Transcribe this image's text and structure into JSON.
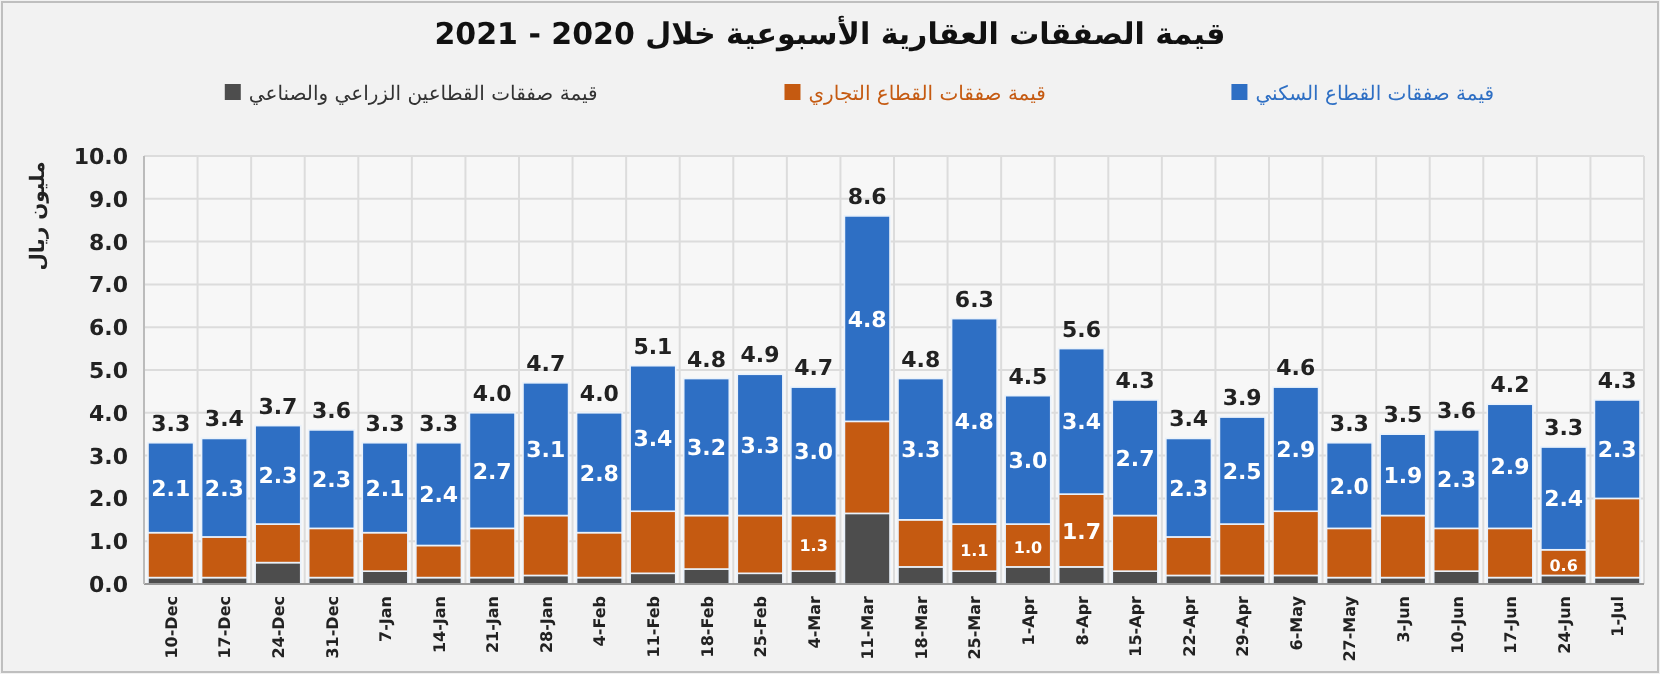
{
  "chart_data": {
    "type": "bar",
    "title": "قيمة الصفقات العقارية الأسبوعية خلال 2020 - 2021",
    "ylabel": "مليون ريال",
    "categories": [
      "10-Dec",
      "17-Dec",
      "24-Dec",
      "31-Dec",
      "7-Jan",
      "14-Jan",
      "21-Jan",
      "28-Jan",
      "4-Feb",
      "11-Feb",
      "18-Feb",
      "25-Feb",
      "4-Mar",
      "11-Mar",
      "18-Mar",
      "25-Mar",
      "1-Apr",
      "8-Apr",
      "15-Apr",
      "22-Apr",
      "29-Apr",
      "6-May",
      "27-May",
      "3-Jun",
      "10-Jun",
      "17-Jun",
      "24-Jun",
      "1-Jul"
    ],
    "stacked": true,
    "series": [
      {
        "name": "قيمة صفقات القطاعين الزراعي والصناعي",
        "color": "#4d4d4d",
        "values": [
          0.15,
          0.15,
          0.5,
          0.15,
          0.3,
          0.15,
          0.15,
          0.2,
          0.15,
          0.25,
          0.35,
          0.25,
          0.3,
          1.65,
          0.4,
          0.3,
          0.4,
          0.4,
          0.3,
          0.2,
          0.2,
          0.2,
          0.15,
          0.15,
          0.3,
          0.15,
          0.2,
          0.15
        ]
      },
      {
        "name": "قيمة صفقات القطاع التجاري",
        "color": "#c55a11",
        "values": [
          1.05,
          0.95,
          0.9,
          1.15,
          0.9,
          0.75,
          1.15,
          1.4,
          1.05,
          1.45,
          1.25,
          1.35,
          1.3,
          2.15,
          1.1,
          1.1,
          1.0,
          1.7,
          1.3,
          0.9,
          1.2,
          1.5,
          1.15,
          1.45,
          1.0,
          1.15,
          0.6,
          1.85
        ],
        "value_labels": [
          null,
          null,
          null,
          null,
          null,
          null,
          null,
          null,
          null,
          null,
          null,
          null,
          "1.3",
          null,
          null,
          "1.1",
          "1.0",
          "1.7",
          null,
          null,
          null,
          null,
          null,
          null,
          null,
          null,
          "0.6",
          null
        ]
      },
      {
        "name": "قيمة صفقات القطاع السكني",
        "color": "#2e6fc4",
        "values": [
          2.1,
          2.3,
          2.3,
          2.3,
          2.1,
          2.4,
          2.7,
          3.1,
          2.8,
          3.4,
          3.2,
          3.3,
          3.0,
          4.8,
          3.3,
          4.8,
          3.0,
          3.4,
          2.7,
          2.3,
          2.5,
          2.9,
          2.0,
          1.9,
          2.3,
          2.9,
          2.4,
          2.3
        ],
        "value_labels": [
          "2.1",
          "2.3",
          "2.3",
          "2.3",
          "2.1",
          "2.4",
          "2.7",
          "3.1",
          "2.8",
          "3.4",
          "3.2",
          "3.3",
          "3.0",
          "4.8",
          "3.3",
          "4.8",
          "3.0",
          "3.4",
          "2.7",
          "2.3",
          "2.5",
          "2.9",
          "2.0",
          "1.9",
          "2.3",
          "2.9",
          "2.4",
          "2.3"
        ]
      }
    ],
    "totals": [
      "3.3",
      "3.4",
      "3.7",
      "3.6",
      "3.3",
      "3.3",
      "4.0",
      "4.7",
      "4.0",
      "5.1",
      "4.8",
      "4.9",
      "4.7",
      "8.6",
      "4.8",
      "6.3",
      "4.5",
      "5.6",
      "4.3",
      "3.4",
      "3.9",
      "4.6",
      "3.3",
      "3.5",
      "3.6",
      "4.2",
      "3.3",
      "4.3"
    ],
    "ylim": [
      0,
      10
    ],
    "yticks": [
      {
        "value": 0,
        "label": "0.0"
      },
      {
        "value": 1,
        "label": "1.0"
      },
      {
        "value": 2,
        "label": "2.0"
      },
      {
        "value": 3,
        "label": "3.0"
      },
      {
        "value": 4,
        "label": "4.0"
      },
      {
        "value": 5,
        "label": "5.0"
      },
      {
        "value": 6,
        "label": "6.0"
      },
      {
        "value": 7,
        "label": "7.0"
      },
      {
        "value": 8,
        "label": "8.0"
      },
      {
        "value": 9,
        "label": "9.0"
      },
      {
        "value": 10,
        "label": "10.0"
      }
    ],
    "grid": true,
    "legend": "top"
  }
}
